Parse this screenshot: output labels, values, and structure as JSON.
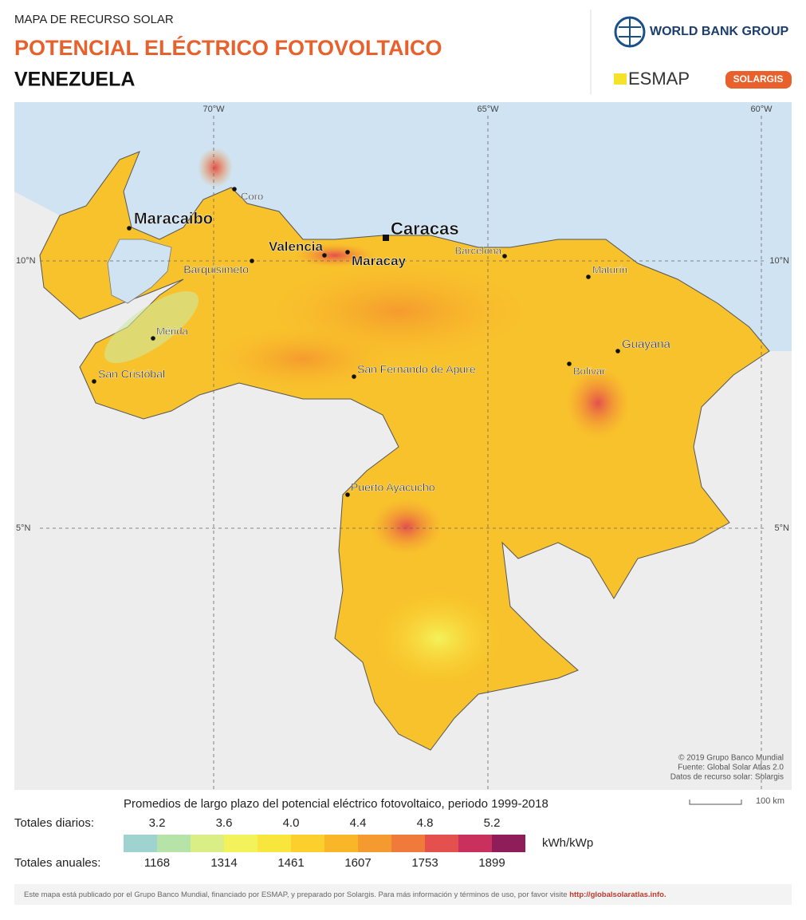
{
  "header": {
    "kicker": "MAPA DE RECURSO SOLAR",
    "title": "POTENCIAL ELÉCTRICO FOTOVOLTAICO",
    "country": "VENEZUELA"
  },
  "logos": {
    "wbg": "WORLD BANK GROUP",
    "esmap": "ESMAP",
    "solargis": "SOLARGIS"
  },
  "graticule": {
    "lon": [
      "70°W",
      "65°W",
      "60°W"
    ],
    "lat": [
      "10°N",
      "5°N"
    ]
  },
  "cities": [
    "Coro",
    "Maracaibo",
    "Valencia",
    "Caracas",
    "Maracay",
    "Barcelona",
    "Barquisimeto",
    "Maturín",
    "Mérida",
    "Guayana",
    "Bolívar",
    "San Cristóbal",
    "San Fernando de Apure",
    "Puerto Ayacucho"
  ],
  "credits": [
    "© 2019 Grupo Banco Mundial",
    "Fuente: Global Solar Atlas 2.0",
    "Datos de recurso solar: Solargis"
  ],
  "scale": "100 km",
  "legend": {
    "title": "Promedios de largo plazo del potencial eléctrico fotovoltaico, periodo 1999-2018",
    "daily_label": "Totales diarios:",
    "daily": [
      "3.2",
      "3.6",
      "4.0",
      "4.4",
      "4.8",
      "5.2"
    ],
    "annual_label": "Totales anuales:",
    "annual": [
      "1168",
      "1314",
      "1461",
      "1607",
      "1753",
      "1899"
    ],
    "unit": "kWh/kWp",
    "colors": [
      "#9fd3d0",
      "#b5e3a8",
      "#d9ef86",
      "#f4f25a",
      "#f8e63c",
      "#fbd02c",
      "#f8b628",
      "#f59a2f",
      "#ef7a3a",
      "#e4504d",
      "#c9305e",
      "#8e1d5a"
    ]
  },
  "footer": {
    "text": "Este mapa está publicado por el Grupo Banco Mundial, financiado por ESMAP, y preparado por Solargis. Para más información y términos de uso, por favor visite ",
    "link": "http://globalsolaratlas.info."
  }
}
